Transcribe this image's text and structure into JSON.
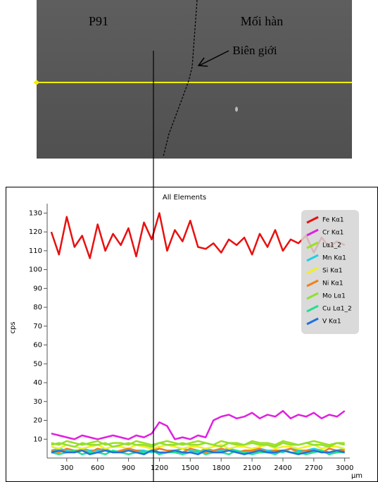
{
  "image_labels": {
    "left": "P91",
    "right": "Mối hàn",
    "boundary": "Biên giới"
  },
  "chart_data": {
    "type": "line",
    "title": "All Elements",
    "ylabel": "cps",
    "xlabel": "µm",
    "x": [
      150,
      225,
      300,
      375,
      450,
      525,
      600,
      675,
      750,
      825,
      900,
      975,
      1050,
      1125,
      1200,
      1275,
      1350,
      1425,
      1500,
      1575,
      1650,
      1725,
      1800,
      1875,
      1950,
      2025,
      2100,
      2175,
      2250,
      2325,
      2400,
      2475,
      2550,
      2625,
      2700,
      2775,
      2850,
      2925,
      3000
    ],
    "xlim": [
      110,
      3050
    ],
    "xticks": [
      300,
      600,
      900,
      1200,
      1500,
      1800,
      2100,
      2400,
      2700,
      3000
    ],
    "ylim": [
      0,
      135
    ],
    "yticks": [
      10,
      20,
      30,
      40,
      50,
      60,
      70,
      80,
      90,
      100,
      110,
      120,
      130
    ],
    "legend": "upper right",
    "series": [
      {
        "name": "Fe Kα1",
        "color": "#e81010",
        "values": [
          120,
          108,
          128,
          112,
          118,
          106,
          124,
          110,
          119,
          113,
          122,
          107,
          125,
          116,
          130,
          110,
          121,
          115,
          126,
          112,
          111,
          114,
          109,
          116,
          113,
          117,
          108,
          119,
          112,
          121,
          110,
          116,
          114,
          118,
          109,
          117,
          112,
          115,
          113
        ]
      },
      {
        "name": "Cr Kα1",
        "color": "#e020e0",
        "values": [
          13,
          12,
          11,
          10,
          12,
          11,
          10,
          11,
          12,
          11,
          10,
          12,
          11,
          13,
          19,
          17,
          10,
          11,
          10,
          12,
          11,
          20,
          22,
          23,
          21,
          22,
          24,
          21,
          23,
          22,
          25,
          21,
          23,
          22,
          24,
          21,
          23,
          22,
          25
        ]
      },
      {
        "name": "Lα1_2",
        "color": "#9be020",
        "values": [
          8,
          7,
          9,
          8,
          7,
          8,
          9,
          7,
          8,
          8,
          7,
          9,
          8,
          7,
          8,
          9,
          8,
          7,
          8,
          9,
          8,
          7,
          9,
          8,
          8,
          7,
          9,
          8,
          8,
          7,
          9,
          8,
          7,
          8,
          9,
          8,
          7,
          8,
          8
        ]
      },
      {
        "name": "Mn Kα1",
        "color": "#20d0e0",
        "values": [
          4,
          5,
          4,
          3,
          5,
          4,
          4,
          5,
          3,
          4,
          5,
          4,
          4,
          3,
          5,
          4,
          4,
          5,
          4,
          3,
          5,
          4,
          4,
          5,
          4,
          3,
          4,
          5,
          4,
          4,
          3,
          5,
          4,
          4,
          5,
          4,
          3,
          4,
          5
        ]
      },
      {
        "name": "Si Kα1",
        "color": "#f0f020",
        "values": [
          6,
          5,
          7,
          6,
          5,
          6,
          7,
          5,
          6,
          6,
          5,
          7,
          6,
          5,
          6,
          7,
          6,
          5,
          6,
          6,
          5,
          6,
          7,
          5,
          6,
          6,
          5,
          6,
          7,
          5,
          6,
          6,
          5,
          6,
          7,
          5,
          6,
          6,
          5
        ]
      },
      {
        "name": "Ni Kα1",
        "color": "#f08020",
        "values": [
          4,
          3,
          5,
          4,
          4,
          3,
          5,
          4,
          3,
          4,
          5,
          4,
          3,
          4,
          5,
          4,
          4,
          3,
          5,
          4,
          3,
          4,
          5,
          4,
          3,
          4,
          4,
          5,
          3,
          4,
          4,
          5,
          3,
          4,
          4,
          3,
          5,
          4,
          4
        ]
      },
      {
        "name": "Mo Lα1",
        "color": "#90e030",
        "values": [
          7,
          8,
          7,
          6,
          8,
          7,
          7,
          8,
          6,
          7,
          8,
          7,
          7,
          6,
          8,
          7,
          7,
          8,
          7,
          7,
          8,
          7,
          6,
          8,
          7,
          7,
          8,
          7,
          7,
          6,
          8,
          7,
          7,
          8,
          7,
          7,
          6,
          8,
          7
        ]
      },
      {
        "name": "Cu Lα1_2",
        "color": "#20e090",
        "values": [
          3,
          2,
          3,
          4,
          2,
          3,
          3,
          2,
          4,
          3,
          2,
          3,
          3,
          4,
          2,
          3,
          3,
          2,
          3,
          4,
          2,
          3,
          3,
          2,
          4,
          3,
          2,
          3,
          3,
          2,
          4,
          3,
          3,
          2,
          3,
          4,
          2,
          3,
          3
        ]
      },
      {
        "name": "V Kα1",
        "color": "#2070e0",
        "values": [
          3,
          4,
          3,
          3,
          4,
          2,
          3,
          4,
          3,
          3,
          4,
          3,
          2,
          4,
          3,
          3,
          4,
          3,
          3,
          2,
          4,
          3,
          3,
          4,
          3,
          2,
          3,
          4,
          3,
          3,
          4,
          3,
          2,
          3,
          4,
          3,
          3,
          4,
          3
        ]
      }
    ]
  }
}
